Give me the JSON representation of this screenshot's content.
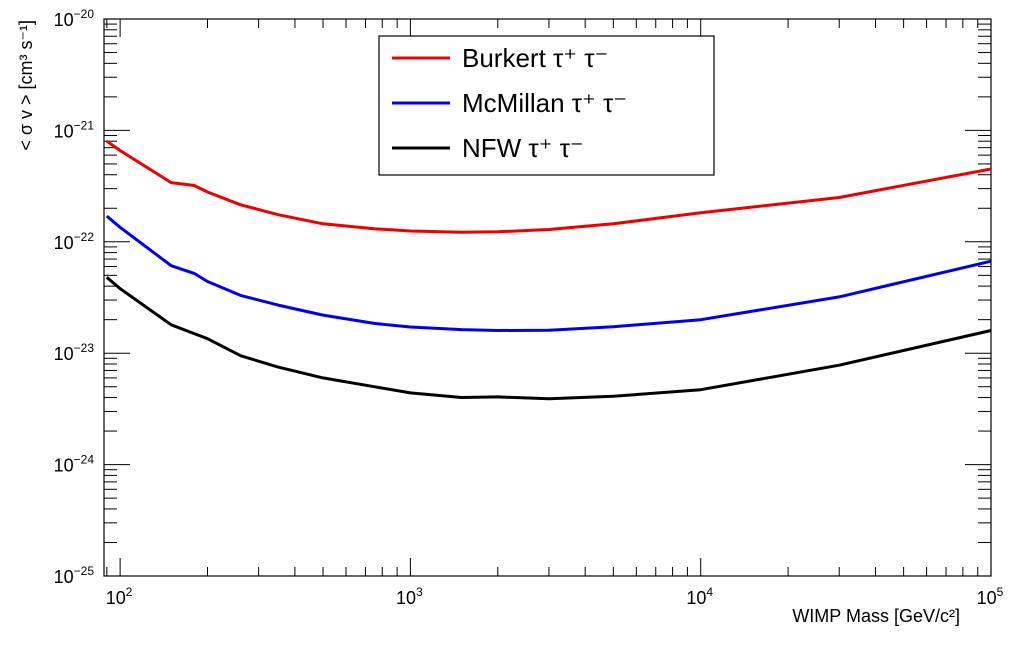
{
  "chart_data": {
    "type": "line",
    "xlabel": "WIMP Mass [GeV/c²]",
    "ylabel": "< σ v >  [cm³ s⁻¹]",
    "xscale": "log",
    "yscale": "log",
    "xlim": [
      88,
      100000
    ],
    "ylim": [
      1e-25,
      1e-20
    ],
    "x_ticks": [
      {
        "value": 100,
        "base": "10",
        "exp": "2"
      },
      {
        "value": 1000,
        "base": "10",
        "exp": "3"
      },
      {
        "value": 10000,
        "base": "10",
        "exp": "4"
      },
      {
        "value": 100000,
        "base": "10",
        "exp": "5"
      }
    ],
    "y_ticks": [
      {
        "value": 1e-25,
        "base": "10",
        "exp": "−25"
      },
      {
        "value": 1e-24,
        "base": "10",
        "exp": "−24"
      },
      {
        "value": 1e-23,
        "base": "10",
        "exp": "−23"
      },
      {
        "value": 1e-22,
        "base": "10",
        "exp": "−22"
      },
      {
        "value": 1e-21,
        "base": "10",
        "exp": "−21"
      },
      {
        "value": 1e-20,
        "base": "10",
        "exp": "−20"
      }
    ],
    "grid": false,
    "legend_position": "top-center",
    "series": [
      {
        "name": "Burkert τ⁺ τ⁻",
        "color": "#ee0000",
        "x": [
          90,
          100,
          150,
          180,
          200,
          260,
          350,
          500,
          750,
          1000,
          1500,
          2000,
          3000,
          5000,
          10000,
          30000,
          100000
        ],
        "y": [
          8e-22,
          6.6e-22,
          3.4e-22,
          3.2e-22,
          2.8e-22,
          2.15e-22,
          1.75e-22,
          1.45e-22,
          1.31e-22,
          1.25e-22,
          1.22e-22,
          1.23e-22,
          1.29e-22,
          1.45e-22,
          1.82e-22,
          2.5e-22,
          4.5e-22
        ]
      },
      {
        "name": "McMillan τ⁺ τ⁻",
        "color": "#0000ee",
        "x": [
          90,
          100,
          150,
          180,
          200,
          260,
          350,
          500,
          750,
          1000,
          1500,
          2000,
          3000,
          5000,
          10000,
          30000,
          100000
        ],
        "y": [
          1.7e-22,
          1.35e-22,
          6.1e-23,
          5.2e-23,
          4.4e-23,
          3.3e-23,
          2.7e-23,
          2.2e-23,
          1.85e-23,
          1.72e-23,
          1.63e-23,
          1.6e-23,
          1.61e-23,
          1.73e-23,
          2e-23,
          3.2e-23,
          6.7e-23
        ]
      },
      {
        "name": "NFW τ⁺ τ⁻",
        "color": "#000000",
        "x": [
          90,
          100,
          150,
          180,
          200,
          260,
          350,
          500,
          750,
          1000,
          1500,
          2000,
          3000,
          5000,
          10000,
          30000,
          100000
        ],
        "y": [
          4.8e-23,
          3.8e-23,
          1.8e-23,
          1.5e-23,
          1.35e-23,
          9.5e-24,
          7.5e-24,
          6e-24,
          5e-24,
          4.4e-24,
          4e-24,
          4.05e-24,
          3.9e-24,
          4.1e-24,
          4.7e-24,
          7.8e-24,
          1.6e-23
        ]
      }
    ]
  }
}
